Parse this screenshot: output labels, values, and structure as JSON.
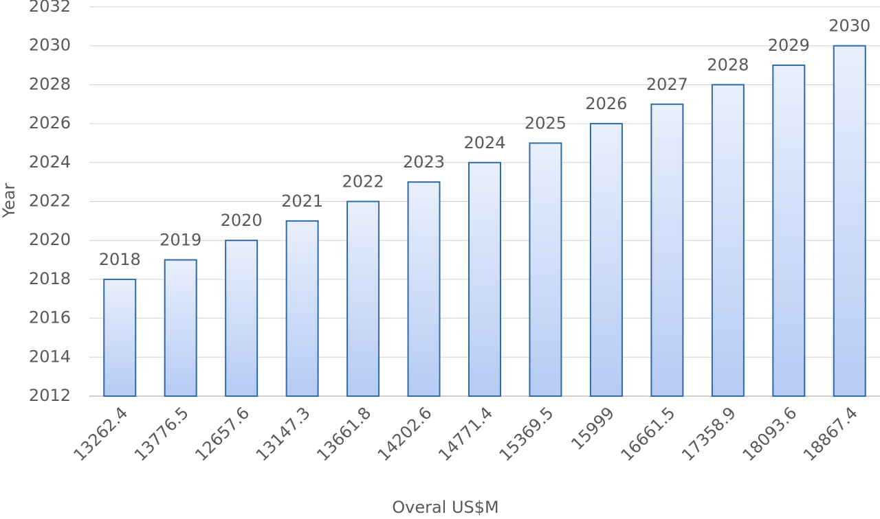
{
  "chart_data": {
    "type": "bar",
    "x_label": "Overal US$M",
    "y_label": "Year",
    "categories": [
      "13262.4",
      "13776.5",
      "12657.6",
      "13147.3",
      "13661.8",
      "14202.6",
      "14771.4",
      "15369.5",
      "15999",
      "16661.5",
      "17358.9",
      "18093.6",
      "18867.4"
    ],
    "values": [
      2018,
      2019,
      2020,
      2021,
      2022,
      2023,
      2024,
      2025,
      2026,
      2027,
      2028,
      2029,
      2030
    ],
    "color": "#2e6aa8",
    "ylim": [
      2012,
      2032
    ],
    "yticks": [
      2012,
      2014,
      2016,
      2018,
      2020,
      2022,
      2024,
      2026,
      2028,
      2030,
      2032
    ],
    "grid": true,
    "data_labels": true
  }
}
